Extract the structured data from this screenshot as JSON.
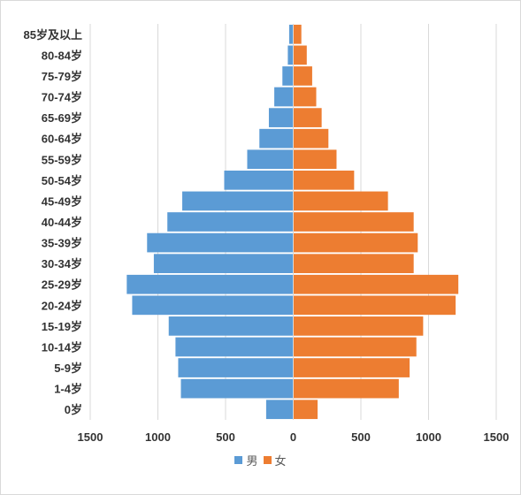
{
  "chart_data": {
    "type": "bar",
    "orientation": "horizontal",
    "title": "",
    "categories": [
      "0岁",
      "1-4岁",
      "5-9岁",
      "10-14岁",
      "15-19岁",
      "20-24岁",
      "25-29岁",
      "30-34岁",
      "35-39岁",
      "40-44岁",
      "45-49岁",
      "50-54岁",
      "55-59岁",
      "60-64岁",
      "65-69岁",
      "70-74岁",
      "75-79岁",
      "80-84岁",
      "85岁及以上"
    ],
    "series": [
      {
        "name": "男",
        "color": "#5b9bd5",
        "direction": "left",
        "values": [
          200,
          830,
          850,
          870,
          920,
          1190,
          1230,
          1030,
          1080,
          930,
          820,
          510,
          340,
          250,
          180,
          140,
          80,
          40,
          30
        ]
      },
      {
        "name": "女",
        "color": "#ed7d31",
        "direction": "right",
        "values": [
          180,
          780,
          860,
          910,
          960,
          1200,
          1220,
          890,
          920,
          890,
          700,
          450,
          320,
          260,
          210,
          170,
          140,
          100,
          60
        ]
      }
    ],
    "xlim": [
      -1500,
      1500
    ],
    "x_ticks": [
      -1500,
      -1000,
      -500,
      0,
      500,
      1000,
      1500
    ],
    "x_tick_labels": [
      "1500",
      "1000",
      "500",
      "0",
      "500",
      "1000",
      "1500"
    ],
    "grid": "vertical",
    "legend_position": "bottom",
    "xlabel": "",
    "ylabel": ""
  }
}
